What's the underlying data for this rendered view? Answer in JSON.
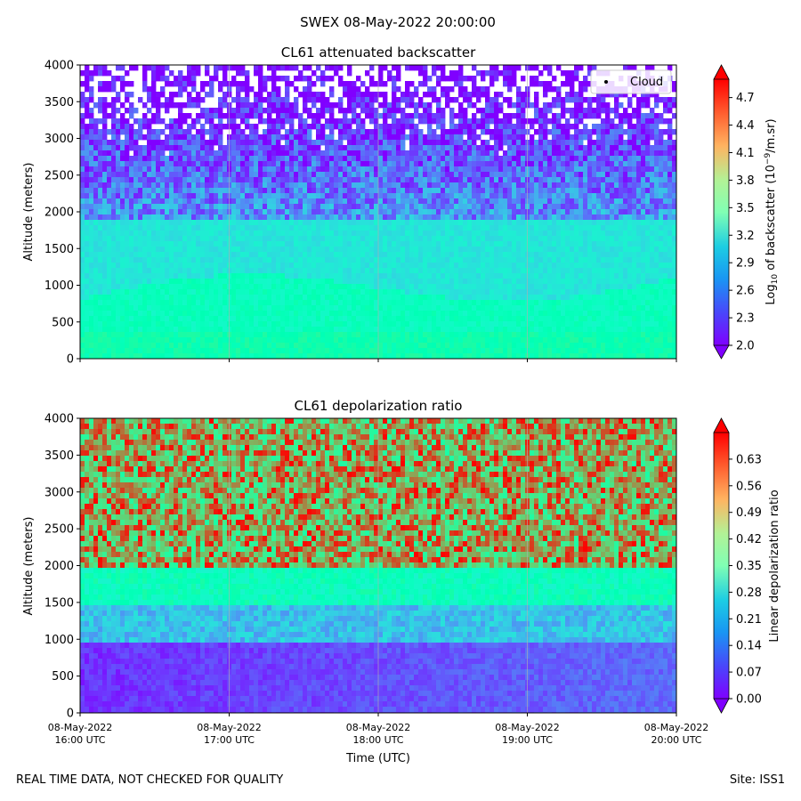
{
  "suptitle": "SWEX 08-May-2022 20:00:00",
  "footer": {
    "left": "REAL TIME DATA, NOT CHECKED FOR QUALITY",
    "right": "Site: ISS1"
  },
  "chart_data": [
    {
      "type": "heatmap",
      "title": "CL61 attenuated backscatter",
      "ylabel": "Altitude (meters)",
      "xlabel": "",
      "ylim": [
        0,
        4000
      ],
      "yticks": [
        "0",
        "500",
        "1000",
        "1500",
        "2000",
        "2500",
        "3000",
        "3500",
        "4000"
      ],
      "xticks": [
        "",
        "",
        "",
        "",
        ""
      ],
      "colorbar": {
        "label": "Log10 of backscatter (10^-9/m.sr)",
        "label_main": "Log",
        "label_sub": "10",
        "label_mid": " of backscatter (10",
        "label_sup": "−9",
        "label_end": "/m.sr)",
        "range": [
          2.0,
          4.9
        ],
        "ticks": [
          "2.0",
          "2.3",
          "2.6",
          "2.9",
          "3.2",
          "3.5",
          "3.8",
          "4.1",
          "4.4",
          "4.7"
        ]
      },
      "legend": {
        "label": "Cloud",
        "position": "top-right"
      }
    },
    {
      "type": "heatmap",
      "title": "CL61 depolarization ratio",
      "ylabel": "Altitude (meters)",
      "xlabel": "Time (UTC)",
      "ylim": [
        0,
        4000
      ],
      "yticks": [
        "0",
        "500",
        "1000",
        "1500",
        "2000",
        "2500",
        "3000",
        "3500",
        "4000"
      ],
      "xticks": [
        [
          "08-May-2022",
          "16:00 UTC"
        ],
        [
          "08-May-2022",
          "17:00 UTC"
        ],
        [
          "08-May-2022",
          "18:00 UTC"
        ],
        [
          "08-May-2022",
          "19:00 UTC"
        ],
        [
          "08-May-2022",
          "20:00 UTC"
        ]
      ],
      "colorbar": {
        "label": "Linear depolarization ratio",
        "range": [
          0.0,
          0.7
        ],
        "ticks": [
          "0.00",
          "0.07",
          "0.14",
          "0.21",
          "0.28",
          "0.35",
          "0.42",
          "0.49",
          "0.56",
          "0.63"
        ]
      }
    }
  ]
}
